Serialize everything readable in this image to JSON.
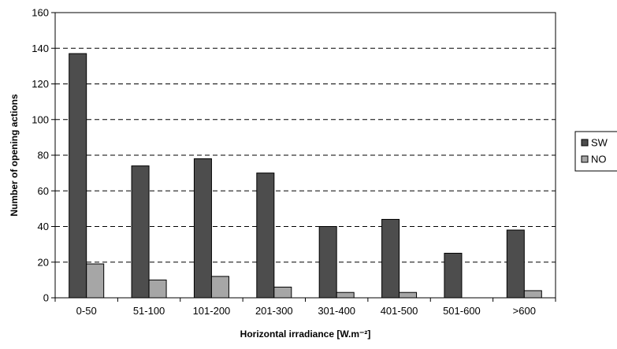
{
  "chart_data": {
    "type": "bar",
    "categories": [
      "0-50",
      "51-100",
      "101-200",
      "201-300",
      "301-400",
      "401-500",
      "501-600",
      ">600"
    ],
    "series": [
      {
        "name": "SW",
        "values": [
          137,
          74,
          78,
          70,
          40,
          44,
          25,
          38
        ],
        "color": "#4d4d4d"
      },
      {
        "name": "NO",
        "values": [
          19,
          10,
          12,
          6,
          3,
          3,
          0,
          4
        ],
        "color": "#a6a6a6"
      }
    ],
    "title": "",
    "xlabel": "Horizontal irradiance [W.m⁻²]",
    "ylabel": "Number of opening actions",
    "ylim": [
      0,
      160
    ],
    "yticks": [
      0,
      20,
      40,
      60,
      80,
      100,
      120,
      140,
      160
    ],
    "grid": "horizontal-dashed",
    "legend_position": "right"
  }
}
